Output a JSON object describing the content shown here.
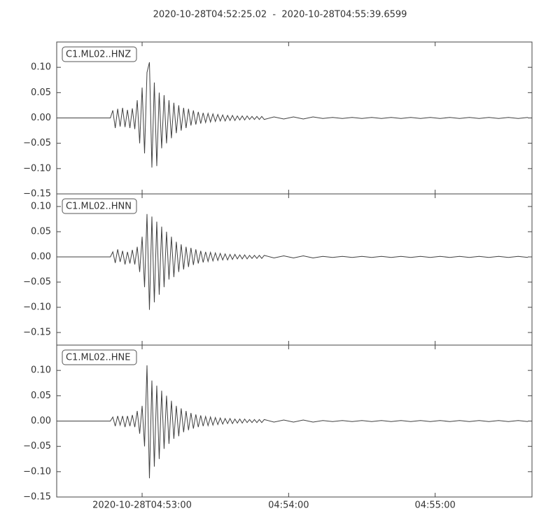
{
  "title": "2020-10-28T04:52:25.02  -  2020-10-28T04:55:39.6599",
  "chart_data": [
    {
      "type": "line",
      "label": "C1.ML02..HNZ",
      "color": "#404040",
      "xlim": [
        25.02,
        219.66
      ],
      "ylim": [
        -0.15,
        0.15
      ],
      "yticks": [
        {
          "value": -0.15,
          "label": "−0.15"
        },
        {
          "value": -0.1,
          "label": "−0.10"
        },
        {
          "value": -0.05,
          "label": "−0.05"
        },
        {
          "value": 0,
          "label": "0.00"
        },
        {
          "value": 0.05,
          "label": "0.05"
        },
        {
          "value": 0.1,
          "label": "0.10"
        }
      ],
      "x": [
        26,
        47,
        48,
        49,
        50,
        51,
        52,
        53,
        54,
        55,
        56,
        57,
        58,
        59,
        60,
        61,
        62,
        63,
        64,
        65,
        66,
        67,
        68,
        69,
        70,
        71,
        72,
        73,
        74,
        75,
        76,
        77,
        78,
        79,
        80,
        81,
        82,
        83,
        84,
        85,
        86,
        87,
        88,
        89,
        90,
        91,
        92,
        93,
        94,
        95,
        96,
        97,
        98,
        99,
        100,
        101,
        102,
        103,
        104,
        105,
        106,
        107,
        108,
        109,
        110,
        114,
        118,
        122,
        126,
        130,
        134,
        138,
        142,
        146,
        150,
        154,
        158,
        162,
        166,
        170,
        174,
        178,
        182,
        186,
        190,
        194,
        198,
        202,
        206,
        210,
        214,
        218
      ],
      "values": [
        0,
        0,
        0.015,
        -0.02,
        0.018,
        -0.017,
        0.02,
        -0.018,
        0.016,
        -0.02,
        0.019,
        -0.022,
        0.035,
        -0.05,
        0.06,
        -0.07,
        0.09,
        0.11,
        -0.098,
        0.07,
        -0.095,
        0.05,
        -0.06,
        0.045,
        -0.05,
        0.035,
        -0.04,
        0.03,
        -0.03,
        0.025,
        -0.025,
        0.02,
        -0.02,
        0.018,
        -0.015,
        0.015,
        -0.013,
        0.012,
        -0.011,
        0.01,
        -0.009,
        0.009,
        -0.008,
        0.008,
        -0.007,
        0.007,
        -0.006,
        0.006,
        -0.006,
        0.005,
        -0.005,
        0.005,
        -0.005,
        0.004,
        -0.004,
        0.004,
        -0.004,
        0.004,
        -0.003,
        0.003,
        -0.003,
        0.003,
        -0.003,
        0.003,
        -0.003,
        0.002,
        -0.002,
        0.002,
        -0.002,
        0.002,
        -0.001,
        0.001,
        -0.001,
        0.001,
        -0.001,
        0.001,
        -0.001,
        0.001,
        -0.001,
        0.001,
        -0.001,
        0.001,
        -0.001,
        0.001,
        -0.001,
        0.001,
        -0.001,
        0.001,
        -0.001,
        0.001,
        -0.001,
        0.001
      ]
    },
    {
      "type": "line",
      "label": "C1.ML02..HNN",
      "color": "#404040",
      "xlim": [
        25.02,
        219.66
      ],
      "ylim": [
        -0.175,
        0.125
      ],
      "yticks": [
        {
          "value": -0.15,
          "label": "−0.15"
        },
        {
          "value": -0.1,
          "label": "−0.10"
        },
        {
          "value": -0.05,
          "label": "−0.05"
        },
        {
          "value": 0,
          "label": "0.00"
        },
        {
          "value": 0.05,
          "label": "0.05"
        },
        {
          "value": 0.1,
          "label": "0.10"
        }
      ],
      "x": [
        26,
        47,
        48,
        49,
        50,
        51,
        52,
        53,
        54,
        55,
        56,
        57,
        58,
        59,
        60,
        61,
        62,
        63,
        64,
        65,
        66,
        67,
        68,
        69,
        70,
        71,
        72,
        73,
        74,
        75,
        76,
        77,
        78,
        79,
        80,
        81,
        82,
        83,
        84,
        85,
        86,
        87,
        88,
        89,
        90,
        91,
        92,
        93,
        94,
        95,
        96,
        97,
        98,
        99,
        100,
        101,
        102,
        103,
        104,
        105,
        106,
        107,
        108,
        109,
        110,
        114,
        118,
        122,
        126,
        130,
        134,
        138,
        142,
        146,
        150,
        154,
        158,
        162,
        166,
        170,
        174,
        178,
        182,
        186,
        190,
        194,
        198,
        202,
        206,
        210,
        214,
        218
      ],
      "values": [
        0,
        0,
        0.01,
        -0.012,
        0.015,
        -0.01,
        0.012,
        -0.015,
        0.01,
        -0.013,
        0.014,
        -0.015,
        0.02,
        -0.03,
        0.04,
        -0.06,
        0.085,
        -0.105,
        0.08,
        -0.09,
        0.07,
        -0.075,
        0.06,
        -0.06,
        0.05,
        -0.045,
        0.04,
        -0.04,
        0.03,
        -0.03,
        0.025,
        -0.025,
        0.02,
        -0.02,
        0.018,
        -0.016,
        0.015,
        -0.013,
        0.012,
        -0.011,
        0.01,
        -0.009,
        0.009,
        -0.008,
        0.008,
        -0.007,
        0.007,
        -0.006,
        0.006,
        -0.006,
        0.005,
        -0.005,
        0.005,
        -0.004,
        0.004,
        -0.004,
        0.004,
        -0.004,
        0.003,
        -0.003,
        0.003,
        -0.003,
        0.003,
        -0.003,
        0.003,
        -0.002,
        0.002,
        -0.002,
        0.002,
        -0.002,
        0.001,
        -0.001,
        0.001,
        -0.001,
        0.001,
        -0.001,
        0.001,
        -0.001,
        0.001,
        -0.001,
        0.001,
        -0.001,
        0.001,
        -0.001,
        0.001,
        -0.001,
        0.001,
        -0.001,
        0.001,
        -0.001,
        0.001,
        -0.001
      ]
    },
    {
      "type": "line",
      "label": "C1.ML02..HNE",
      "color": "#404040",
      "xlim": [
        25.02,
        219.66
      ],
      "ylim": [
        -0.15,
        0.15
      ],
      "yticks": [
        {
          "value": -0.15,
          "label": "−0.15"
        },
        {
          "value": -0.1,
          "label": "−0.10"
        },
        {
          "value": -0.05,
          "label": "−0.05"
        },
        {
          "value": 0,
          "label": "0.00"
        },
        {
          "value": 0.05,
          "label": "0.05"
        },
        {
          "value": 0.1,
          "label": "0.10"
        }
      ],
      "xticks": [
        {
          "value": 60,
          "label": "2020-10-28T04:53:00"
        },
        {
          "value": 120,
          "label": "04:54:00"
        },
        {
          "value": 180,
          "label": "04:55:00"
        }
      ],
      "x": [
        26,
        47,
        48,
        49,
        50,
        51,
        52,
        53,
        54,
        55,
        56,
        57,
        58,
        59,
        60,
        61,
        62,
        63,
        64,
        65,
        66,
        67,
        68,
        69,
        70,
        71,
        72,
        73,
        74,
        75,
        76,
        77,
        78,
        79,
        80,
        81,
        82,
        83,
        84,
        85,
        86,
        87,
        88,
        89,
        90,
        91,
        92,
        93,
        94,
        95,
        96,
        97,
        98,
        99,
        100,
        101,
        102,
        103,
        104,
        105,
        106,
        107,
        108,
        109,
        110,
        114,
        118,
        122,
        126,
        130,
        134,
        138,
        142,
        146,
        150,
        154,
        158,
        162,
        166,
        170,
        174,
        178,
        182,
        186,
        190,
        194,
        198,
        202,
        206,
        210,
        214,
        218
      ],
      "values": [
        0,
        0,
        0.008,
        -0.01,
        0.01,
        -0.008,
        0.01,
        -0.012,
        0.01,
        -0.01,
        0.012,
        -0.012,
        0.02,
        -0.025,
        0.03,
        -0.05,
        0.11,
        -0.113,
        0.08,
        -0.09,
        0.07,
        -0.075,
        0.06,
        -0.055,
        0.05,
        -0.045,
        0.04,
        -0.035,
        0.03,
        -0.03,
        0.025,
        -0.022,
        0.02,
        -0.018,
        0.016,
        -0.015,
        0.013,
        -0.012,
        0.011,
        -0.01,
        0.009,
        -0.009,
        0.008,
        -0.008,
        0.007,
        -0.007,
        0.006,
        -0.006,
        0.005,
        -0.005,
        0.005,
        -0.005,
        0.004,
        -0.004,
        0.004,
        -0.004,
        0.004,
        -0.003,
        0.003,
        -0.003,
        0.003,
        -0.003,
        0.003,
        -0.003,
        0.003,
        -0.002,
        0.002,
        -0.002,
        0.002,
        -0.002,
        0.001,
        -0.001,
        0.001,
        -0.001,
        0.001,
        -0.001,
        0.001,
        -0.001,
        0.001,
        -0.001,
        0.001,
        -0.001,
        0.001,
        -0.001,
        0.001,
        -0.001,
        0.001,
        -0.001,
        0.001,
        -0.001,
        0.001,
        -0.001
      ]
    }
  ]
}
